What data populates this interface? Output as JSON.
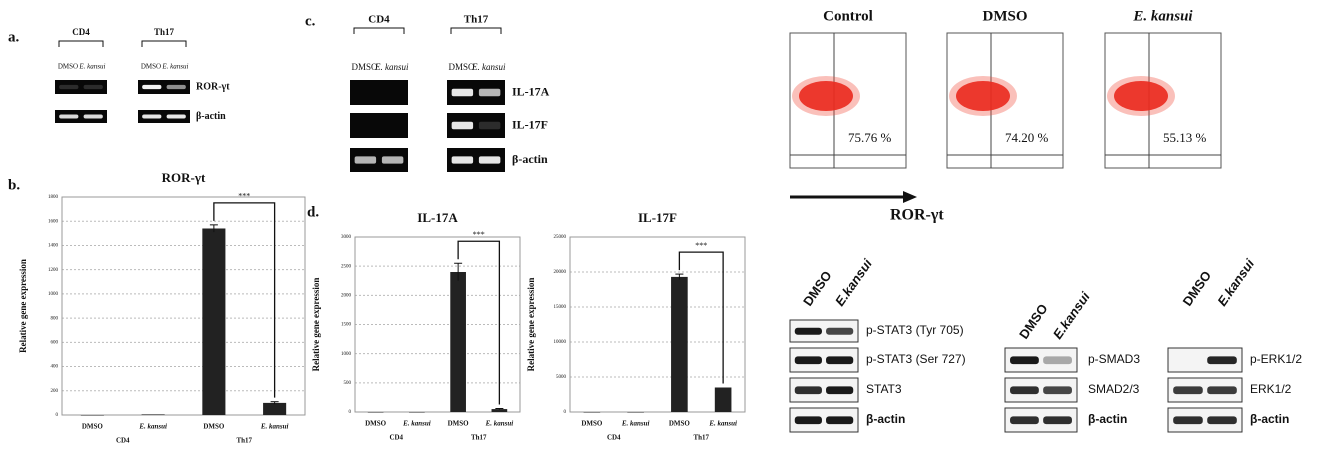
{
  "panel_labels": [
    "a.",
    "b.",
    "c.",
    "d."
  ],
  "gel_a": {
    "groups": [
      "CD4",
      "Th17"
    ],
    "lanes": [
      "DMSO",
      "E. kansui"
    ],
    "rows": [
      "ROR-γt",
      "β-actin"
    ]
  },
  "gel_c": {
    "groups": [
      "CD4",
      "Th17"
    ],
    "lanes": [
      "DMSO",
      "E. kansui"
    ],
    "rows": [
      "IL-17A",
      "IL-17F",
      "β-actin"
    ]
  },
  "flow": {
    "panels": [
      {
        "title": "Control",
        "percent": "75.76 %"
      },
      {
        "title": "DMSO",
        "percent": "74.20 %"
      },
      {
        "title": "E. kansui",
        "percent": "55.13 %"
      }
    ],
    "axis_label": "ROR-γt"
  },
  "western": [
    {
      "lanes": [
        "DMSO",
        "E.kansui"
      ],
      "rows": [
        "p-STAT3 (Tyr 705)",
        "p-STAT3 (Ser 727)",
        "STAT3",
        "β-actin"
      ]
    },
    {
      "lanes": [
        "DMSO",
        "E.kansui"
      ],
      "rows": [
        "p-SMAD3",
        "SMAD2/3",
        "β-actin"
      ]
    },
    {
      "lanes": [
        "DMSO",
        "E.kansui"
      ],
      "rows": [
        "p-ERK1/2",
        "ERK1/2",
        "β-actin"
      ]
    }
  ],
  "chart_data": [
    {
      "type": "bar",
      "title": "ROR-γt",
      "y_label": "Relative gene expression",
      "categories": [
        "DMSO",
        "E. kansui",
        "DMSO",
        "E. kansui"
      ],
      "groups": [
        "CD4",
        "Th17"
      ],
      "values": [
        0,
        5,
        1540,
        100
      ],
      "errors": [
        0,
        0,
        30,
        10
      ],
      "color": "#222222",
      "ylim": [
        0,
        1800
      ],
      "yticks": [
        0,
        200,
        400,
        600,
        800,
        1000,
        1200,
        1400,
        1600,
        1800
      ],
      "grid": true,
      "annotation": "***"
    },
    {
      "type": "bar",
      "title": "IL-17A",
      "y_label": "Relative gene expression",
      "categories": [
        "DMSO",
        "E. kansui",
        "DMSO",
        "E. kansui"
      ],
      "groups": [
        "CD4",
        "Th17"
      ],
      "values": [
        0,
        0,
        2400,
        50
      ],
      "errors": [
        0,
        0,
        150,
        10
      ],
      "color": "#222222",
      "ylim": [
        0,
        3000
      ],
      "yticks": [
        0,
        500,
        1000,
        1500,
        2000,
        2500,
        3000
      ],
      "grid": true,
      "annotation": "***"
    },
    {
      "type": "bar",
      "title": "IL-17F",
      "y_label": "Relative gene expression",
      "categories": [
        "DMSO",
        "E. kansui",
        "DMSO",
        "E. kansui"
      ],
      "groups": [
        "CD4",
        "Th17"
      ],
      "values": [
        0,
        0,
        19300,
        3500
      ],
      "errors": [
        0,
        0,
        400,
        0
      ],
      "color": "#222222",
      "ylim": [
        0,
        25000
      ],
      "yticks": [
        0,
        5000,
        10000,
        15000,
        20000,
        25000
      ],
      "grid": true,
      "annotation": "***"
    }
  ]
}
